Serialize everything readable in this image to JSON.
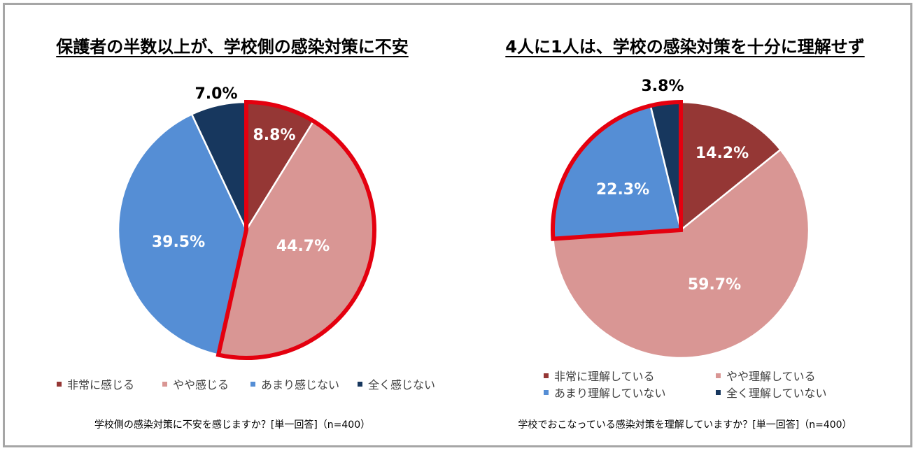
{
  "chart_data": [
    {
      "type": "pie",
      "title": "保護者の半数以上が、学校側の感染対策に不安",
      "question": "学校側の感染対策に不安を感じますか？[単一回答]（n=400）",
      "categories": [
        "非常に感じる",
        "やや感じる",
        "あまり感じない",
        "全く感じない"
      ],
      "values": [
        8.8,
        44.7,
        39.5,
        7.0
      ],
      "labels": [
        "8.8%",
        "44.7%",
        "39.5%",
        "7.0%"
      ],
      "colors": [
        "#953735",
        "#d99694",
        "#558ed5",
        "#17375e"
      ],
      "label_colors": [
        "#ffffff",
        "#ffffff",
        "#ffffff",
        "#000000"
      ],
      "highlight": [
        0,
        1
      ],
      "legend": "bottom"
    },
    {
      "type": "pie",
      "title": "4人に1人は、学校の感染対策を十分に理解せず",
      "question": "学校でおこなっている感染対策を理解していますか？[単一回答]（n=400）",
      "categories": [
        "非常に理解している",
        "やや理解している",
        "あまり理解していない",
        "全く理解していない"
      ],
      "values": [
        14.2,
        59.7,
        22.3,
        3.8
      ],
      "labels": [
        "14.2%",
        "59.7%",
        "22.3%",
        "3.8%"
      ],
      "colors": [
        "#953735",
        "#d99694",
        "#558ed5",
        "#17375e"
      ],
      "label_colors": [
        "#ffffff",
        "#ffffff",
        "#ffffff",
        "#000000"
      ],
      "highlight": [
        2,
        3
      ],
      "legend": "bottom"
    }
  ],
  "highlight_color": "#e4000f"
}
